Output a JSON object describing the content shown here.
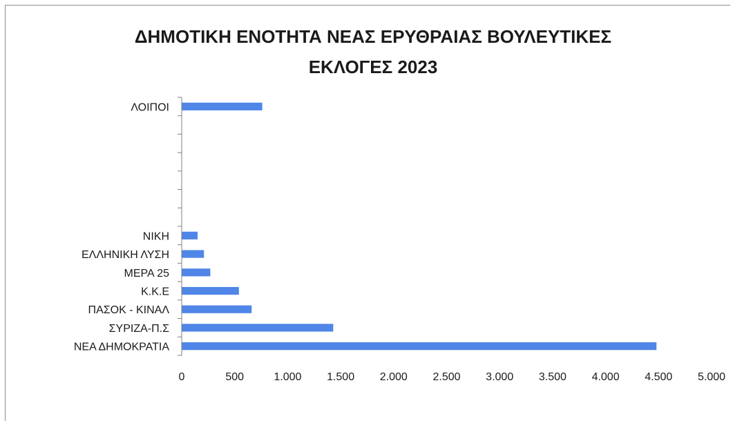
{
  "chart_data": {
    "type": "bar",
    "orientation": "horizontal",
    "title": "ΔΗΜΟΤΙΚΗ ΕΝΟΤΗΤΑ ΝΕΑΣ ΕΡΥΘΡΑΙΑΣ ΒΟΥΛΕΥΤΙΚΕΣ ΕΚΛΟΓΕΣ 2023",
    "title_lines": [
      "ΔΗΜΟΤΙΚΗ ΕΝΟΤΗΤΑ ΝΕΑΣ ΕΡΥΘΡΑΙΑΣ ΒΟΥΛΕΥΤΙΚΕΣ",
      "ΕΚΛΟΓΕΣ 2023"
    ],
    "categories": [
      "ΝΕΑ ΔΗΜΟΚΡΑΤΙΑ",
      "ΣΥΡΙΖΑ-Π.Σ",
      "ΠΑΣΟΚ - ΚΙΝΑΛ",
      "Κ.Κ.Ε",
      "ΜΕΡΑ 25",
      "ΕΛΛΗΝΙΚΗ ΛΥΣΗ",
      "ΝΙΚΗ",
      "",
      "",
      "",
      "",
      "",
      "",
      "ΛΟΙΠΟΙ"
    ],
    "values": [
      4480,
      1430,
      660,
      540,
      270,
      210,
      150,
      null,
      null,
      null,
      null,
      null,
      null,
      760
    ],
    "xlim": [
      0,
      5000
    ],
    "xticks": [
      "0",
      "500",
      "1.000",
      "1.500",
      "2.000",
      "2.500",
      "3.000",
      "3.500",
      "4.000",
      "4.500",
      "5.000"
    ],
    "xtick_values": [
      0,
      500,
      1000,
      1500,
      2000,
      2500,
      3000,
      3500,
      4000,
      4500,
      5000
    ],
    "bar_color": "#4f86e8",
    "grid": false,
    "legend": "none"
  }
}
